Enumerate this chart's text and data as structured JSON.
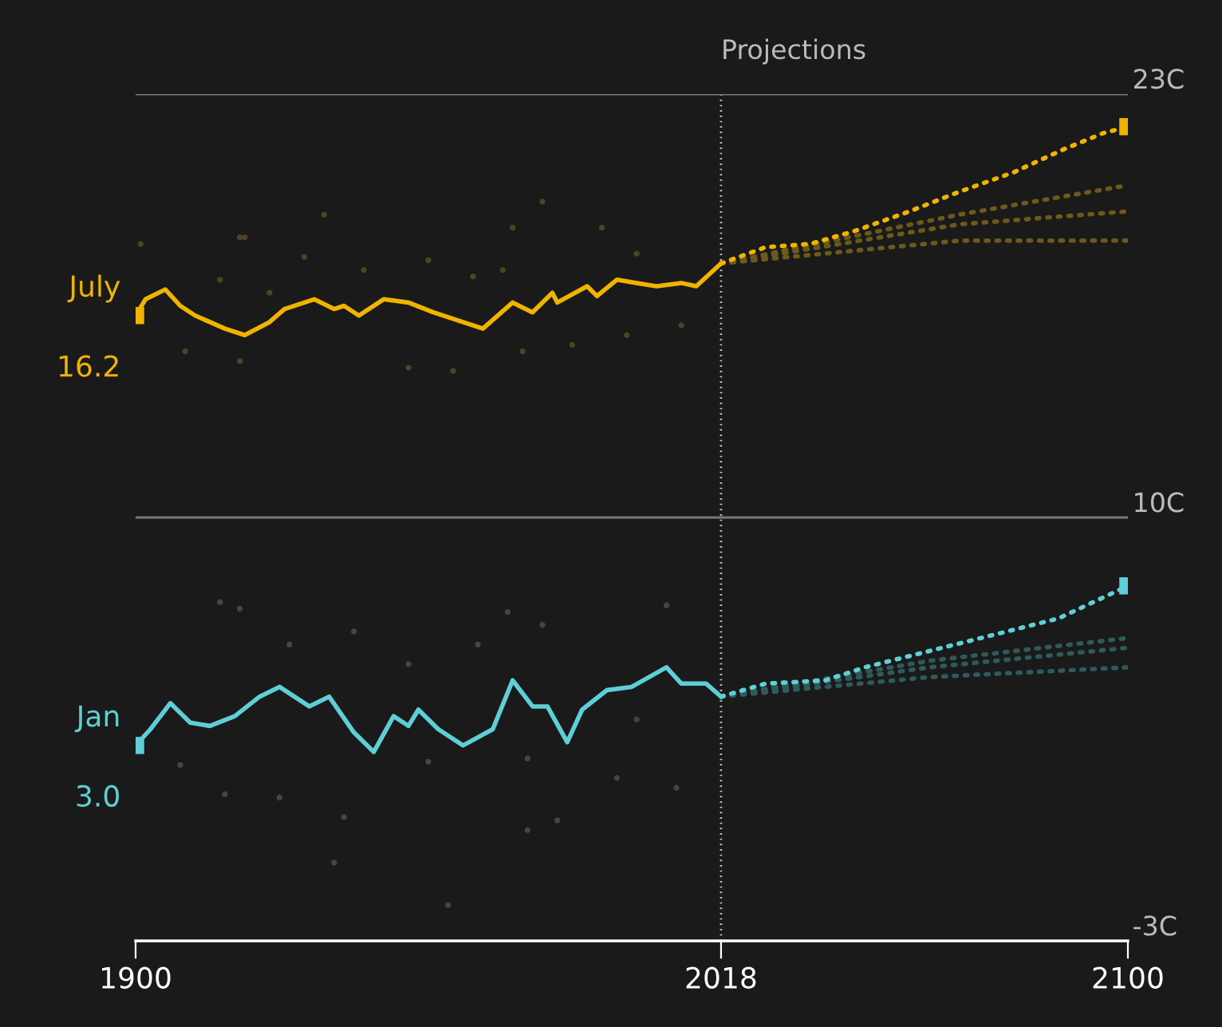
{
  "chart_data": {
    "type": "line",
    "xlim": [
      1900,
      2100
    ],
    "xticks": [
      1900,
      2018,
      2100
    ],
    "ylim": [
      -3,
      23
    ],
    "yticks": [
      {
        "value": -3,
        "label": "-3C"
      },
      {
        "value": 10,
        "label": "10C"
      },
      {
        "value": 23,
        "label": "23C"
      }
    ],
    "legend": false,
    "ref_lines": [
      {
        "axis": "x",
        "value": 2018,
        "label": "Projections",
        "line_style": "dotted",
        "color": "#cccccc"
      },
      {
        "axis": "y",
        "value": 23,
        "line_style": "solid",
        "color": "#777777"
      },
      {
        "axis": "y",
        "value": 10,
        "line_style": "solid",
        "color": "#777777"
      }
    ],
    "series": [
      {
        "type": "scatter",
        "marker": "circle",
        "color": "#4d4426",
        "x": [
          1901,
          1910,
          1917,
          1921,
          1921,
          1922,
          1927,
          1934,
          1938,
          1946,
          1955,
          1959,
          1964,
          1968,
          1974,
          1976,
          1978,
          1982,
          1988,
          1994,
          1999,
          2001,
          2010
        ],
        "values": [
          18.4,
          15.1,
          17.3,
          18.6,
          14.8,
          18.6,
          16.9,
          18.0,
          19.3,
          17.6,
          14.6,
          17.9,
          14.5,
          17.4,
          17.6,
          18.9,
          15.1,
          19.7,
          15.3,
          18.9,
          15.6,
          18.1,
          15.9
        ]
      },
      {
        "type": "scatter",
        "marker": "circle",
        "color": "#3a4a4a",
        "x": [
          1909,
          1917,
          1918,
          1921,
          1929,
          1931,
          1940,
          1942,
          1944,
          1955,
          1959,
          1963,
          1969,
          1975,
          1979,
          1979,
          1982,
          1985,
          1997,
          2001,
          2007,
          2009
        ],
        "values": [
          2.4,
          7.4,
          1.5,
          7.2,
          1.4,
          6.1,
          -0.6,
          0.8,
          6.5,
          5.5,
          2.5,
          -1.9,
          6.1,
          7.1,
          2.6,
          0.4,
          6.7,
          0.7,
          2.0,
          3.8,
          7.3,
          1.7
        ]
      },
      {
        "type": "line",
        "line_style": "dotted",
        "color": "#6b5a1a",
        "x": [
          2018,
          2066,
          2100
        ],
        "values": [
          17.8,
          19.3,
          20.2
        ]
      },
      {
        "type": "line",
        "line_style": "dotted",
        "color": "#6b5a1a",
        "x": [
          2018,
          2066,
          2100
        ],
        "values": [
          17.8,
          19.0,
          19.4
        ]
      },
      {
        "type": "line",
        "line_style": "dotted",
        "color": "#6b5a1a",
        "x": [
          2018,
          2066,
          2100
        ],
        "values": [
          17.8,
          18.5,
          18.5
        ]
      },
      {
        "type": "line",
        "line_style": "dotted",
        "color": "#2f5a5a",
        "x": [
          2018,
          2060,
          2100
        ],
        "values": [
          4.5,
          5.6,
          6.3
        ]
      },
      {
        "type": "line",
        "line_style": "dotted",
        "color": "#2f5a5a",
        "x": [
          2018,
          2060,
          2100
        ],
        "values": [
          4.5,
          5.4,
          6.0
        ]
      },
      {
        "type": "line",
        "line_style": "dotted",
        "color": "#2f5a5a",
        "x": [
          2018,
          2060,
          2100
        ],
        "values": [
          4.5,
          5.1,
          5.4
        ]
      },
      {
        "name": "July",
        "color": "#f0b400",
        "x": [
          1900,
          1902,
          1906,
          1909,
          1912,
          1918,
          1922,
          1927,
          1930,
          1936,
          1940,
          1942,
          1945,
          1950,
          1955,
          1960,
          1964,
          1970,
          1976,
          1980,
          1984,
          1985,
          1991,
          1993,
          1997,
          2001,
          2005,
          2010,
          2013,
          2018
        ],
        "values": [
          16.2,
          16.7,
          17.0,
          16.5,
          16.2,
          15.8,
          15.6,
          16.0,
          16.4,
          16.7,
          16.4,
          16.5,
          16.2,
          16.7,
          16.6,
          16.3,
          16.1,
          15.8,
          16.6,
          16.3,
          16.9,
          16.6,
          17.1,
          16.8,
          17.3,
          17.2,
          17.1,
          17.2,
          17.1,
          17.8
        ]
      },
      {
        "type": "line",
        "line_style": "dotted",
        "color": "#f0b400",
        "x": [
          2018,
          2027,
          2036,
          2045,
          2056,
          2066,
          2077,
          2087,
          2095,
          2100
        ],
        "values": [
          17.8,
          18.3,
          18.4,
          18.8,
          19.4,
          20.0,
          20.6,
          21.3,
          21.8,
          22.0
        ]
      },
      {
        "type": "scatter",
        "marker": "square",
        "color": "#f0b400",
        "x": [
          1900,
          2100
        ],
        "values": [
          16.2,
          22.0
        ],
        "value_labels": [
          "16.2",
          null
        ]
      },
      {
        "name": "Jan",
        "color": "#5ecfd6",
        "x": [
          1900,
          1903,
          1907,
          1911,
          1915,
          1920,
          1925,
          1929,
          1935,
          1939,
          1944,
          1948,
          1952,
          1955,
          1957,
          1961,
          1966,
          1972,
          1976,
          1980,
          1983,
          1987,
          1990,
          1995,
          2000,
          2007,
          2010,
          2015,
          2018
        ],
        "values": [
          3.0,
          3.5,
          4.3,
          3.7,
          3.6,
          3.9,
          4.5,
          4.8,
          4.2,
          4.5,
          3.4,
          2.8,
          3.9,
          3.6,
          4.1,
          3.5,
          3.0,
          3.5,
          5.0,
          4.2,
          4.2,
          3.1,
          4.1,
          4.7,
          4.8,
          5.4,
          4.9,
          4.9,
          4.5
        ]
      },
      {
        "type": "line",
        "line_style": "dotted",
        "color": "#5ecfd6",
        "x": [
          2018,
          2027,
          2039,
          2047,
          2060,
          2073,
          2086,
          2100
        ],
        "values": [
          4.5,
          4.9,
          5.0,
          5.4,
          5.9,
          6.4,
          6.9,
          7.9
        ]
      },
      {
        "type": "scatter",
        "marker": "square",
        "color": "#5ecfd6",
        "x": [
          1900,
          2100
        ],
        "values": [
          3.0,
          7.9
        ],
        "value_labels": [
          "3.0",
          null
        ]
      }
    ]
  }
}
